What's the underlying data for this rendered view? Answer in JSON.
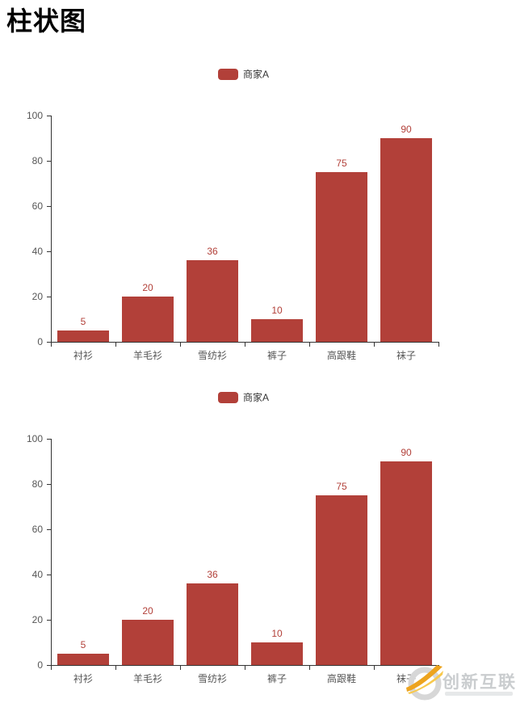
{
  "page": {
    "title": "柱状图"
  },
  "watermark": {
    "text": "创新互联",
    "logo": "swoosh-circle-logo",
    "accent_color": "#eda41f",
    "grey_color": "#d7d7d7"
  },
  "colors": {
    "series_red": "#b24039",
    "axis_line": "#333333",
    "axis_label": "#555555",
    "legend_text": "#333333",
    "title_text": "#000000"
  },
  "chart_data": [
    {
      "type": "bar",
      "title": "",
      "legend": [
        "商家A"
      ],
      "legend_position": "top-center",
      "categories": [
        "衬衫",
        "羊毛衫",
        "雪纺衫",
        "裤子",
        "高跟鞋",
        "袜子"
      ],
      "series": [
        {
          "name": "商家A",
          "values": [
            5,
            20,
            36,
            10,
            75,
            90
          ],
          "color": "#b24039"
        }
      ],
      "xlabel": "",
      "ylabel": "",
      "ylim": [
        0,
        100
      ],
      "yticks": [
        0,
        20,
        40,
        60,
        80,
        100
      ],
      "grid": false,
      "value_labels": true
    },
    {
      "type": "bar",
      "title": "",
      "legend": [
        "商家A"
      ],
      "legend_position": "top-center",
      "categories": [
        "衬衫",
        "羊毛衫",
        "雪纺衫",
        "裤子",
        "高跟鞋",
        "袜子"
      ],
      "series": [
        {
          "name": "商家A",
          "values": [
            5,
            20,
            36,
            10,
            75,
            90
          ],
          "color": "#b24039"
        }
      ],
      "xlabel": "",
      "ylabel": "",
      "ylim": [
        0,
        100
      ],
      "yticks": [
        0,
        20,
        40,
        60,
        80,
        100
      ],
      "grid": false,
      "value_labels": true
    }
  ]
}
